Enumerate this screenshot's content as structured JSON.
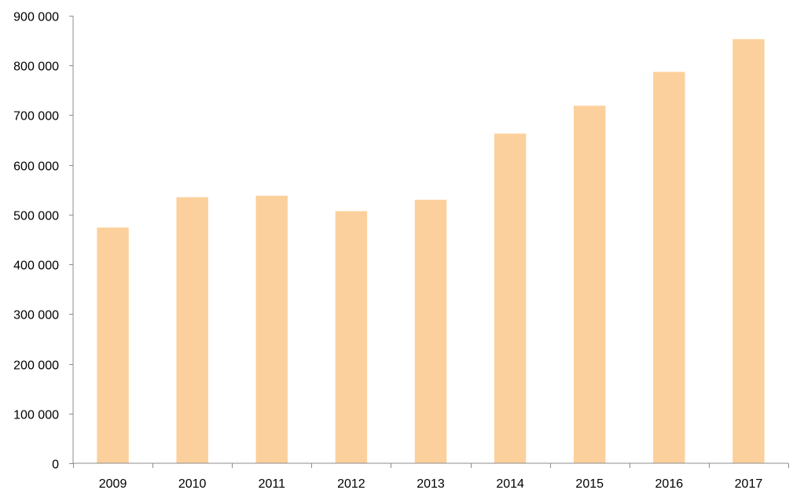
{
  "chart_data": {
    "type": "bar",
    "title": "",
    "xlabel": "",
    "ylabel": "",
    "categories": [
      "2009",
      "2010",
      "2011",
      "2012",
      "2013",
      "2014",
      "2015",
      "2016",
      "2017"
    ],
    "series": [
      {
        "values": [
          474000,
          535000,
          538000,
          507000,
          530000,
          663000,
          719000,
          787000,
          853000
        ]
      }
    ],
    "ylim": [
      0,
      900000
    ],
    "yticks": [
      0,
      100000,
      200000,
      300000,
      400000,
      500000,
      600000,
      700000,
      800000,
      900000
    ],
    "ytick_labels": [
      "0",
      "100 000",
      "200 000",
      "300 000",
      "400 000",
      "500 000",
      "600 000",
      "700 000",
      "800 000",
      "900 000"
    ],
    "grid": false,
    "legend": "none",
    "colors": {
      "bar": "#fcd09c",
      "axis": "#8c8c8c",
      "text": "#000000"
    }
  }
}
